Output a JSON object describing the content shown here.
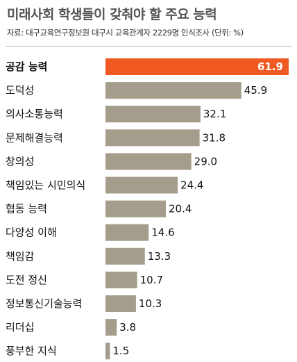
{
  "colors": {
    "bar": "#a59d8c",
    "highlight": "#f05a22"
  },
  "chart_data": {
    "type": "bar",
    "orientation": "horizontal",
    "title": "미래사회 학생들이 갖춰야 할 주요 능력",
    "subtitle": "자료: 대구교육연구정보원 대구시 교육관계자 2229명 인식조사 (단위: %)",
    "xlabel": "",
    "ylabel": "",
    "xlim": [
      0,
      61.9
    ],
    "grid": false,
    "highlight_index": 0,
    "categories": [
      "공감 능력",
      "도덕성",
      "의사소통능력",
      "문제해결능력",
      "창의성",
      "책임있는 시민의식",
      "협동 능력",
      "다양성 이해",
      "책임감",
      "도전 정신",
      "정보통신기술능력",
      "리더십",
      "풍부한 지식"
    ],
    "values": [
      61.9,
      45.9,
      32.1,
      31.8,
      29.0,
      24.4,
      20.4,
      14.6,
      13.3,
      10.7,
      10.3,
      3.8,
      1.5
    ],
    "value_labels": [
      "61.9",
      "45.9",
      "32.1",
      "31.8",
      "29.0",
      "24.4",
      "20.4",
      "14.6",
      "13.3",
      "10.7",
      "10.3",
      "3.8",
      "1.5"
    ]
  }
}
